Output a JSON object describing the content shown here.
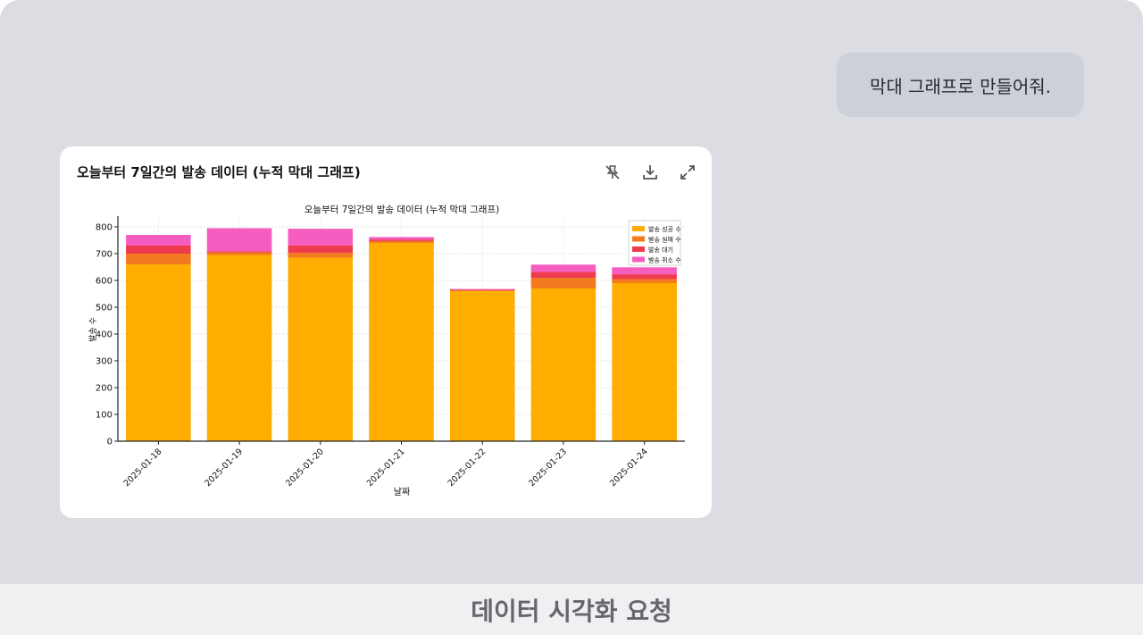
{
  "chat": {
    "user_message": "막대 그래프로 만들어줘."
  },
  "card": {
    "title": "오늘부터 7일간의 발송 데이터 (누적 막대 그래프)",
    "tools": [
      {
        "name": "pin-off-icon"
      },
      {
        "name": "download-icon"
      },
      {
        "name": "expand-icon"
      }
    ]
  },
  "chart_data": {
    "type": "bar",
    "stacked": true,
    "title": "오늘부터 7일간의 발송 데이터 (누적 막대 그래프)",
    "xlabel": "날짜",
    "ylabel": "발송 수",
    "ylim": [
      0,
      840
    ],
    "yticks": [
      0,
      100,
      200,
      300,
      400,
      500,
      600,
      700,
      800
    ],
    "grid": true,
    "legend_position": "top-right",
    "categories": [
      "2025-01-18",
      "2025-01-19",
      "2025-01-20",
      "2025-01-21",
      "2025-01-22",
      "2025-01-23",
      "2025-01-24"
    ],
    "series": [
      {
        "name": "발송 성공 수",
        "color": "#ffad00",
        "values": [
          660,
          695,
          685,
          740,
          560,
          570,
          590
        ]
      },
      {
        "name": "발송 실패 수",
        "color": "#f47a1f",
        "values": [
          40,
          10,
          18,
          7,
          3,
          40,
          15
        ]
      },
      {
        "name": "발송 대기",
        "color": "#ef3b4e",
        "values": [
          30,
          4,
          28,
          6,
          2,
          22,
          18
        ]
      },
      {
        "name": "발송 취소 수",
        "color": "#f55dc0",
        "values": [
          40,
          86,
          62,
          9,
          3,
          27,
          26
        ]
      }
    ]
  },
  "footer": {
    "caption": "데이터 시각화 요청"
  }
}
